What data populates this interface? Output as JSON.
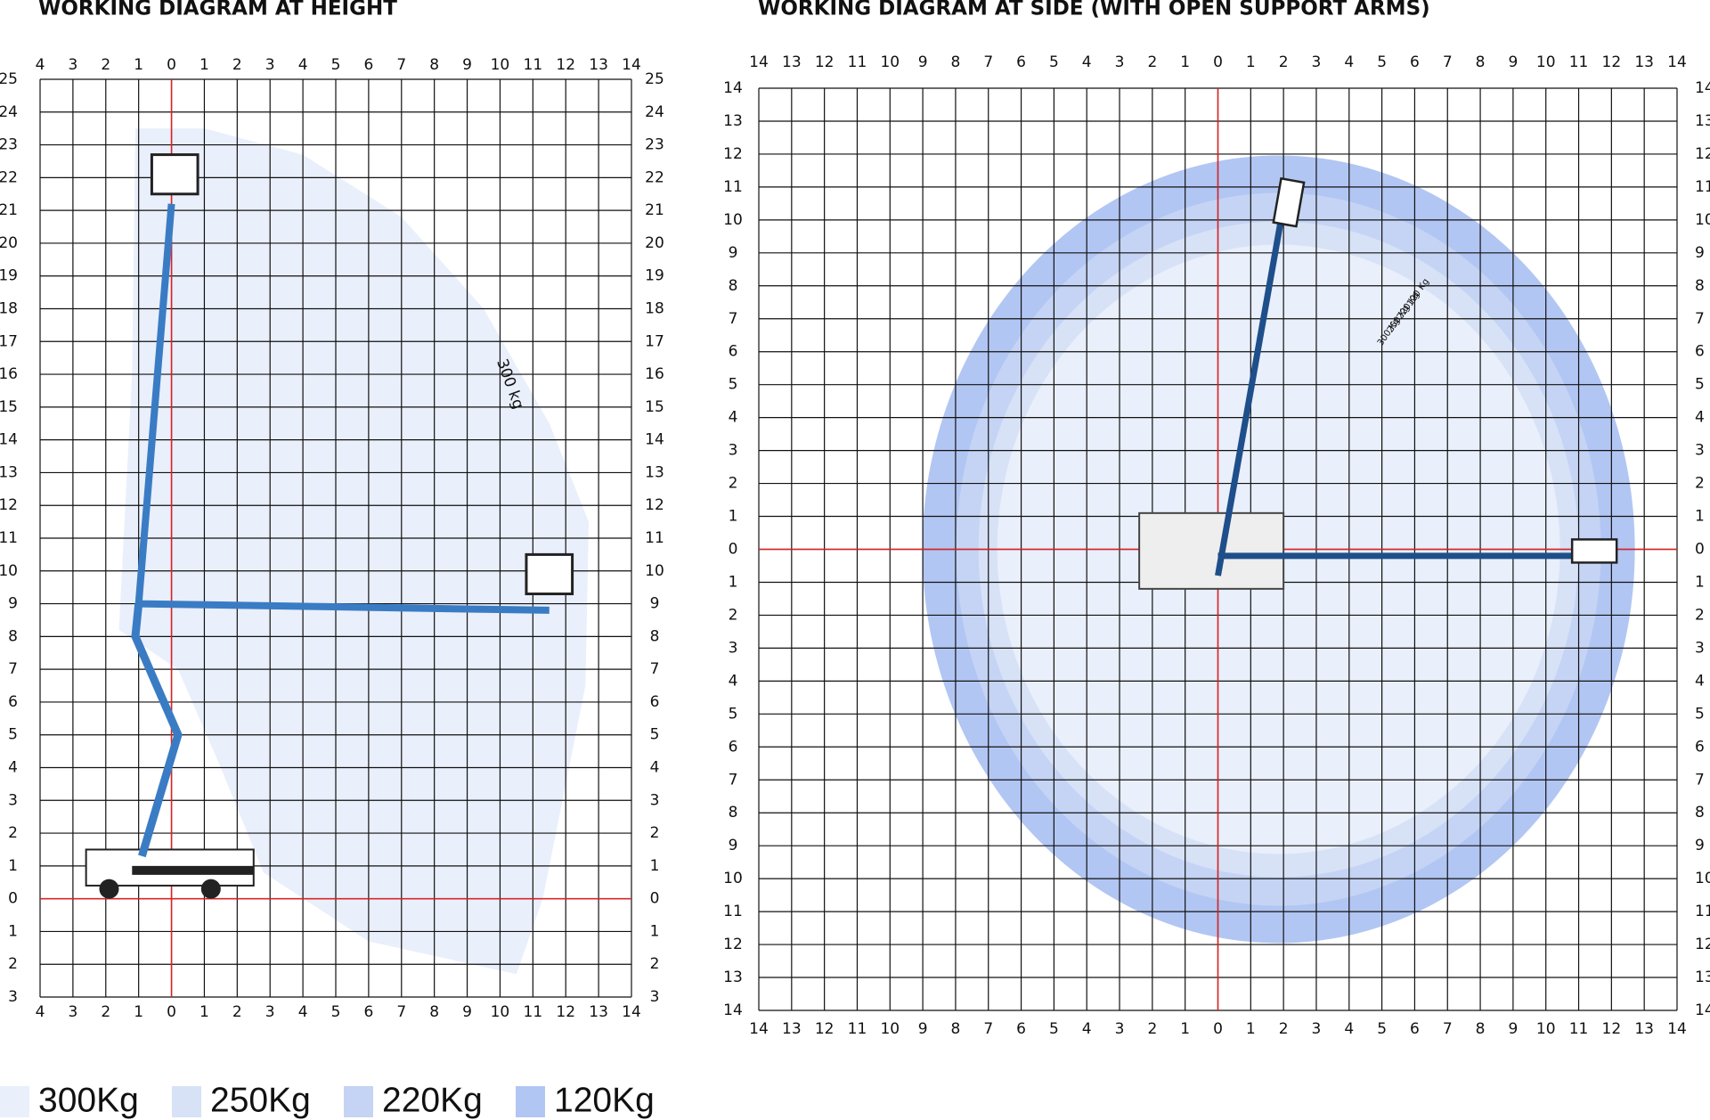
{
  "left_panel": {
    "title": "WORKING DIAGRAM AT HEIGHT",
    "x_labels": [
      4,
      3,
      2,
      1,
      0,
      1,
      2,
      3,
      4,
      5,
      6,
      7,
      8,
      9,
      10,
      11,
      12,
      13,
      14
    ],
    "y_labels": [
      25,
      24,
      23,
      22,
      21,
      20,
      19,
      18,
      17,
      16,
      15,
      14,
      13,
      12,
      11,
      10,
      9,
      8,
      7,
      6,
      5,
      4,
      3,
      2,
      1,
      0,
      1,
      2,
      3
    ],
    "annotation": "300 kg"
  },
  "right_panel": {
    "title": "WORKING DIAGRAM AT SIDE (WITH OPEN SUPPORT ARMS)",
    "x_labels": [
      14,
      13,
      12,
      11,
      10,
      9,
      8,
      7,
      6,
      5,
      4,
      3,
      2,
      1,
      0,
      1,
      2,
      3,
      4,
      5,
      6,
      7,
      8,
      9,
      10,
      11,
      12,
      13,
      14
    ],
    "y_labels": [
      14,
      13,
      12,
      11,
      10,
      9,
      8,
      7,
      6,
      5,
      4,
      3,
      2,
      1,
      0,
      1,
      2,
      3,
      4,
      5,
      6,
      7,
      8,
      9,
      10,
      11,
      12,
      13,
      14
    ],
    "annotations": [
      "120 Kg",
      "220 Kg",
      "250 Kg",
      "300 Kg"
    ]
  },
  "legend": [
    {
      "label": "300Kg",
      "color": "#e9effb"
    },
    {
      "label": "250Kg",
      "color": "#d7e2f7"
    },
    {
      "label": "220Kg",
      "color": "#c5d4f4"
    },
    {
      "label": "120Kg",
      "color": "#b2c6f3"
    }
  ]
}
